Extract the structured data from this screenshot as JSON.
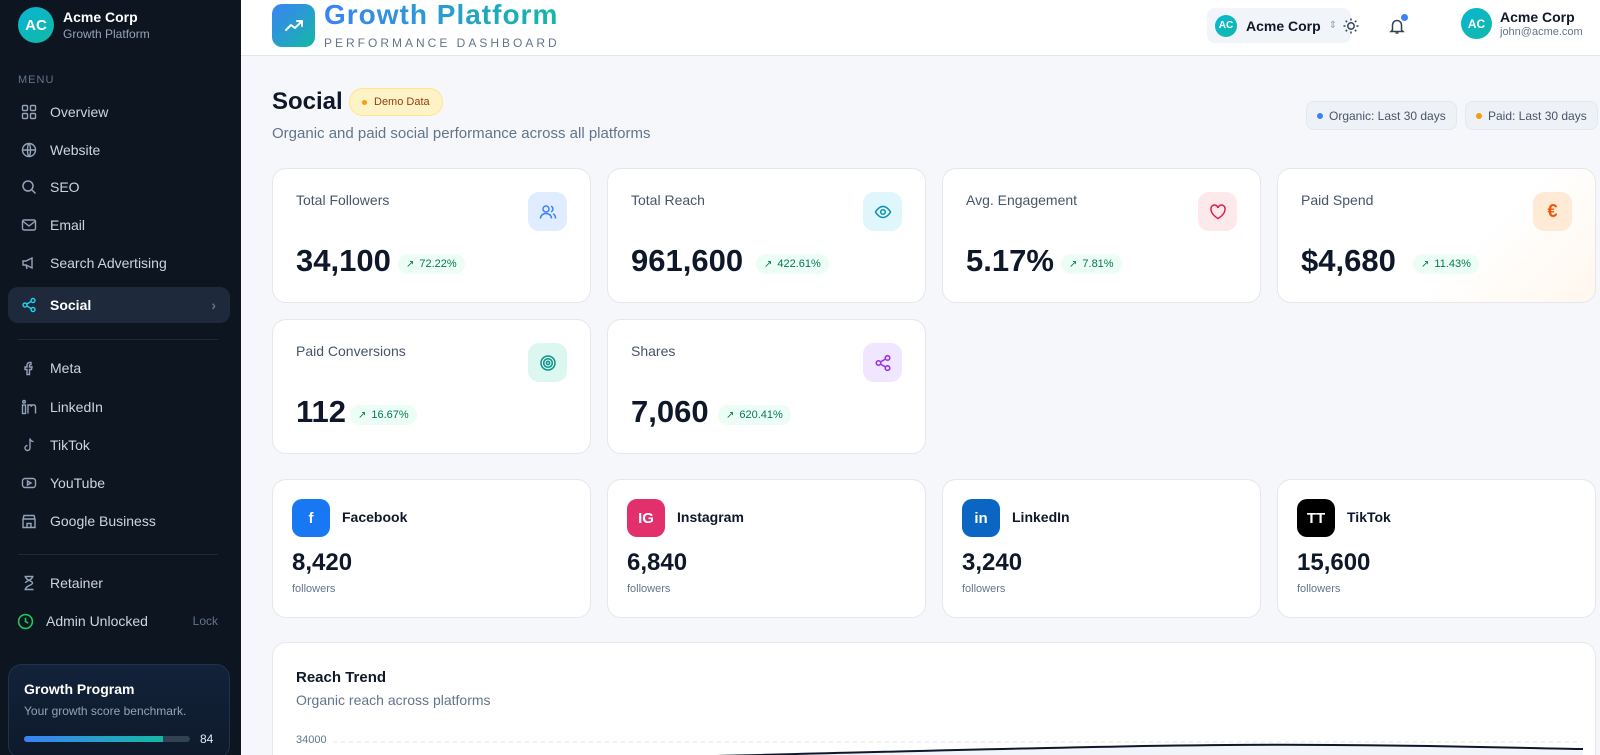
{
  "org": {
    "initials": "AC",
    "name": "Acme Corp",
    "product": "Growth Platform"
  },
  "sidebar": {
    "menu_label": "MENU",
    "items": [
      {
        "label": "Overview",
        "icon": "grid-icon"
      },
      {
        "label": "Website",
        "icon": "globe-icon"
      },
      {
        "label": "SEO",
        "icon": "search-icon"
      },
      {
        "label": "Email",
        "icon": "mail-icon"
      },
      {
        "label": "Search Advertising",
        "icon": "megaphone-icon"
      },
      {
        "label": "Social",
        "icon": "share-icon",
        "active": true
      }
    ],
    "platforms": [
      {
        "label": "Meta",
        "icon": "facebook-icon"
      },
      {
        "label": "LinkedIn",
        "icon": "linkedin-icon"
      },
      {
        "label": "TikTok",
        "icon": "tiktok-icon"
      },
      {
        "label": "YouTube",
        "icon": "youtube-icon"
      },
      {
        "label": "Google Business",
        "icon": "store-icon"
      }
    ],
    "retainer": "Retainer",
    "admin": "Admin Unlocked",
    "lock": "Lock",
    "growth": {
      "title": "Growth Program",
      "subtitle": "Your growth score benchmark.",
      "score": 84
    }
  },
  "header": {
    "title": "Growth Platform",
    "subtitle": "PERFORMANCE DASHBOARD",
    "org_switch": {
      "initials": "AC",
      "name": "Acme Corp"
    },
    "user": {
      "initials": "AC",
      "name": "Acme Corp",
      "email": "john@acme.com"
    }
  },
  "page": {
    "title": "Social",
    "badge": "Demo Data",
    "subtitle": "Organic and paid social performance across all platforms",
    "ranges": [
      {
        "label": "Organic: Last 30 days",
        "color": "#3b82f6"
      },
      {
        "label": "Paid: Last 30 days",
        "color": "#f59e0b"
      }
    ]
  },
  "kpis": [
    {
      "label": "Total Followers",
      "value": "34,100",
      "delta": "72.22%",
      "icon": "users-icon"
    },
    {
      "label": "Total Reach",
      "value": "961,600",
      "delta": "422.61%",
      "icon": "eye-icon"
    },
    {
      "label": "Avg. Engagement",
      "value": "5.17%",
      "delta": "7.81%",
      "icon": "heart-icon"
    },
    {
      "label": "Paid Spend",
      "value": "$4,680",
      "delta": "11.43%",
      "icon": "euro-icon"
    },
    {
      "label": "Paid Conversions",
      "value": "112",
      "delta": "16.67%",
      "icon": "target-icon"
    },
    {
      "label": "Shares",
      "value": "7,060",
      "delta": "620.41%",
      "icon": "share-icon"
    }
  ],
  "platforms": [
    {
      "name": "Facebook",
      "badge": "f",
      "value": "8,420",
      "unit": "followers",
      "color": "#1877f2"
    },
    {
      "name": "Instagram",
      "badge": "IG",
      "value": "6,840",
      "unit": "followers",
      "color": "#e1306c"
    },
    {
      "name": "LinkedIn",
      "badge": "in",
      "value": "3,240",
      "unit": "followers",
      "color": "#0a66c2"
    },
    {
      "name": "TikTok",
      "badge": "TT",
      "value": "15,600",
      "unit": "followers",
      "color": "#000000"
    }
  ],
  "trend": {
    "title": "Reach Trend",
    "subtitle": "Organic reach across platforms",
    "y_tick": "34000"
  }
}
